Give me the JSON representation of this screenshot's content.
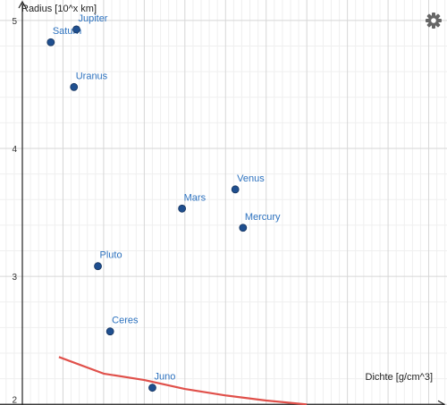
{
  "graph": {
    "settings_icon": "gear-icon",
    "point_color": "#1f4f8f",
    "label_color": "#2d72bf",
    "curve_color": "#e0504a"
  },
  "chart_data": {
    "type": "scatter",
    "xlabel": "Dichte [g/cm^3]",
    "ylabel": "Radius [10^x km]",
    "xlim": [
      -0.55,
      10.45
    ],
    "ylim": [
      1.995,
      5.16
    ],
    "x_ticks": [
      0,
      1,
      2,
      3,
      4,
      5,
      6,
      7,
      8,
      9,
      10
    ],
    "y_ticks": [
      2,
      3,
      4,
      5
    ],
    "grid": true,
    "points": [
      {
        "label": "Saturn",
        "x": 0.7,
        "y": 4.83
      },
      {
        "label": "Jupiter",
        "x": 1.33,
        "y": 4.93
      },
      {
        "label": "Uranus",
        "x": 1.27,
        "y": 4.48
      },
      {
        "label": "Venus",
        "x": 5.24,
        "y": 3.68
      },
      {
        "label": "Mars",
        "x": 3.93,
        "y": 3.53
      },
      {
        "label": "Mercury",
        "x": 5.43,
        "y": 3.38
      },
      {
        "label": "Pluto",
        "x": 1.86,
        "y": 3.08
      },
      {
        "label": "Ceres",
        "x": 2.16,
        "y": 2.57
      },
      {
        "label": "Juno",
        "x": 3.2,
        "y": 2.13
      }
    ],
    "curve": [
      {
        "x": 0.9,
        "y": 2.37
      },
      {
        "x": 2.0,
        "y": 2.24
      },
      {
        "x": 3.0,
        "y": 2.19
      },
      {
        "x": 4.0,
        "y": 2.12
      },
      {
        "x": 5.0,
        "y": 2.07
      },
      {
        "x": 6.0,
        "y": 2.03
      },
      {
        "x": 7.0,
        "y": 2.0
      }
    ]
  }
}
